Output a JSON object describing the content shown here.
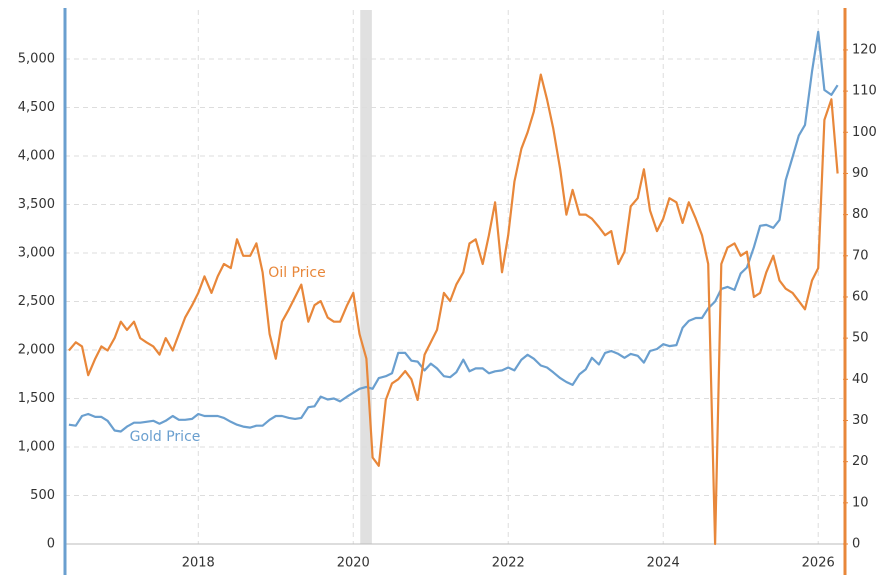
{
  "chart_data": {
    "type": "line",
    "x": [
      2016.33,
      2016.42,
      2016.5,
      2016.58,
      2016.67,
      2016.75,
      2016.83,
      2016.92,
      2017.0,
      2017.08,
      2017.17,
      2017.25,
      2017.33,
      2017.42,
      2017.5,
      2017.58,
      2017.67,
      2017.75,
      2017.83,
      2017.92,
      2018.0,
      2018.08,
      2018.17,
      2018.25,
      2018.33,
      2018.42,
      2018.5,
      2018.58,
      2018.67,
      2018.75,
      2018.83,
      2018.92,
      2019.0,
      2019.08,
      2019.17,
      2019.25,
      2019.33,
      2019.42,
      2019.5,
      2019.58,
      2019.67,
      2019.75,
      2019.83,
      2019.92,
      2020.0,
      2020.08,
      2020.17,
      2020.25,
      2020.33,
      2020.42,
      2020.5,
      2020.58,
      2020.67,
      2020.75,
      2020.83,
      2020.92,
      2021.0,
      2021.08,
      2021.17,
      2021.25,
      2021.33,
      2021.42,
      2021.5,
      2021.58,
      2021.67,
      2021.75,
      2021.83,
      2021.92,
      2022.0,
      2022.08,
      2022.17,
      2022.25,
      2022.33,
      2022.42,
      2022.5,
      2022.58,
      2022.67,
      2022.75,
      2022.83,
      2022.92,
      2023.0,
      2023.08,
      2023.17,
      2023.25,
      2023.33,
      2023.42,
      2023.5,
      2023.58,
      2023.67,
      2023.75,
      2023.83,
      2023.92,
      2024.0,
      2024.08,
      2024.17,
      2024.25,
      2024.33,
      2024.42,
      2024.5,
      2024.58,
      2024.67,
      2024.75,
      2024.83,
      2024.92,
      2025.0,
      2025.08,
      2025.17,
      2025.25,
      2025.33,
      2025.42,
      2025.5,
      2025.58,
      2025.67,
      2025.75,
      2025.83,
      2025.92,
      2026.0,
      2026.08,
      2026.17,
      2026.25
    ],
    "series": [
      {
        "name": "Gold Price",
        "color": "#6a9fcf",
        "values": [
          1230,
          1220,
          1320,
          1340,
          1310,
          1310,
          1270,
          1170,
          1160,
          1210,
          1250,
          1250,
          1260,
          1270,
          1240,
          1270,
          1320,
          1280,
          1280,
          1290,
          1340,
          1320,
          1320,
          1320,
          1300,
          1260,
          1230,
          1210,
          1200,
          1220,
          1220,
          1280,
          1320,
          1320,
          1300,
          1290,
          1300,
          1410,
          1420,
          1520,
          1490,
          1500,
          1470,
          1520,
          1560,
          1600,
          1620,
          1600,
          1710,
          1730,
          1760,
          1970,
          1970,
          1890,
          1880,
          1790,
          1860,
          1810,
          1730,
          1720,
          1770,
          1900,
          1780,
          1810,
          1810,
          1760,
          1780,
          1790,
          1820,
          1790,
          1900,
          1950,
          1910,
          1840,
          1820,
          1770,
          1710,
          1670,
          1640,
          1750,
          1800,
          1920,
          1850,
          1970,
          1990,
          1960,
          1920,
          1960,
          1940,
          1870,
          1990,
          2010,
          2060,
          2040,
          2050,
          2230,
          2300,
          2330,
          2330,
          2430,
          2500,
          2630,
          2650,
          2620,
          2790,
          2850,
          3060,
          3280,
          3290,
          3260,
          3340,
          3750,
          3990,
          4210,
          4320,
          4870,
          5280,
          4680,
          4630,
          4730
        ]
      },
      {
        "name": "Oil Price",
        "color": "#e8873a",
        "axis": "y2",
        "values": [
          47,
          49,
          48,
          41,
          45,
          48,
          47,
          50,
          54,
          52,
          54,
          50,
          49,
          48,
          46,
          50,
          47,
          51,
          55,
          58,
          61,
          65,
          61,
          65,
          68,
          67,
          74,
          70,
          70,
          73,
          66,
          51,
          45,
          54,
          57,
          60,
          63,
          54,
          58,
          59,
          55,
          54,
          54,
          58,
          61,
          51,
          45,
          21,
          19,
          35,
          39,
          40,
          42,
          40,
          35,
          46,
          49,
          52,
          61,
          59,
          63,
          66,
          73,
          74,
          68,
          75,
          83,
          66,
          75,
          88,
          96,
          100,
          105,
          114,
          108,
          101,
          91,
          80,
          86,
          80,
          80,
          79,
          77,
          75,
          76,
          68,
          71,
          82,
          84,
          91,
          81,
          76,
          79,
          84,
          83,
          78,
          83,
          79,
          75,
          68,
          0,
          68,
          72,
          73,
          70,
          71,
          60,
          61,
          66,
          70,
          64,
          62,
          61,
          59,
          57,
          64,
          67,
          103,
          108,
          90
        ]
      }
    ],
    "xlim": [
      2016.28,
      2026.32
    ],
    "xticks": [
      2018,
      2020,
      2022,
      2024,
      2026
    ],
    "ylim": [
      0,
      5505
    ],
    "yticks": [
      0,
      500,
      {
        "value": 1000,
        "label": "1,000"
      },
      {
        "value": 1500,
        "label": "1,500"
      },
      {
        "value": 2000,
        "label": "2,000"
      },
      {
        "value": 2500,
        "label": "2,500"
      },
      {
        "value": 3000,
        "label": "3,000"
      },
      {
        "value": 3500,
        "label": "3,500"
      },
      {
        "value": 4000,
        "label": "4,000"
      },
      {
        "value": 4500,
        "label": "4,500"
      },
      {
        "value": 5000,
        "label": "5,000"
      }
    ],
    "y2lim": [
      0,
      129.7
    ],
    "y2ticks": [
      0,
      10,
      20,
      30,
      40,
      50,
      60,
      70,
      80,
      90,
      100,
      110,
      120
    ],
    "recession": [
      2020.09,
      2020.24
    ],
    "grid": true
  }
}
